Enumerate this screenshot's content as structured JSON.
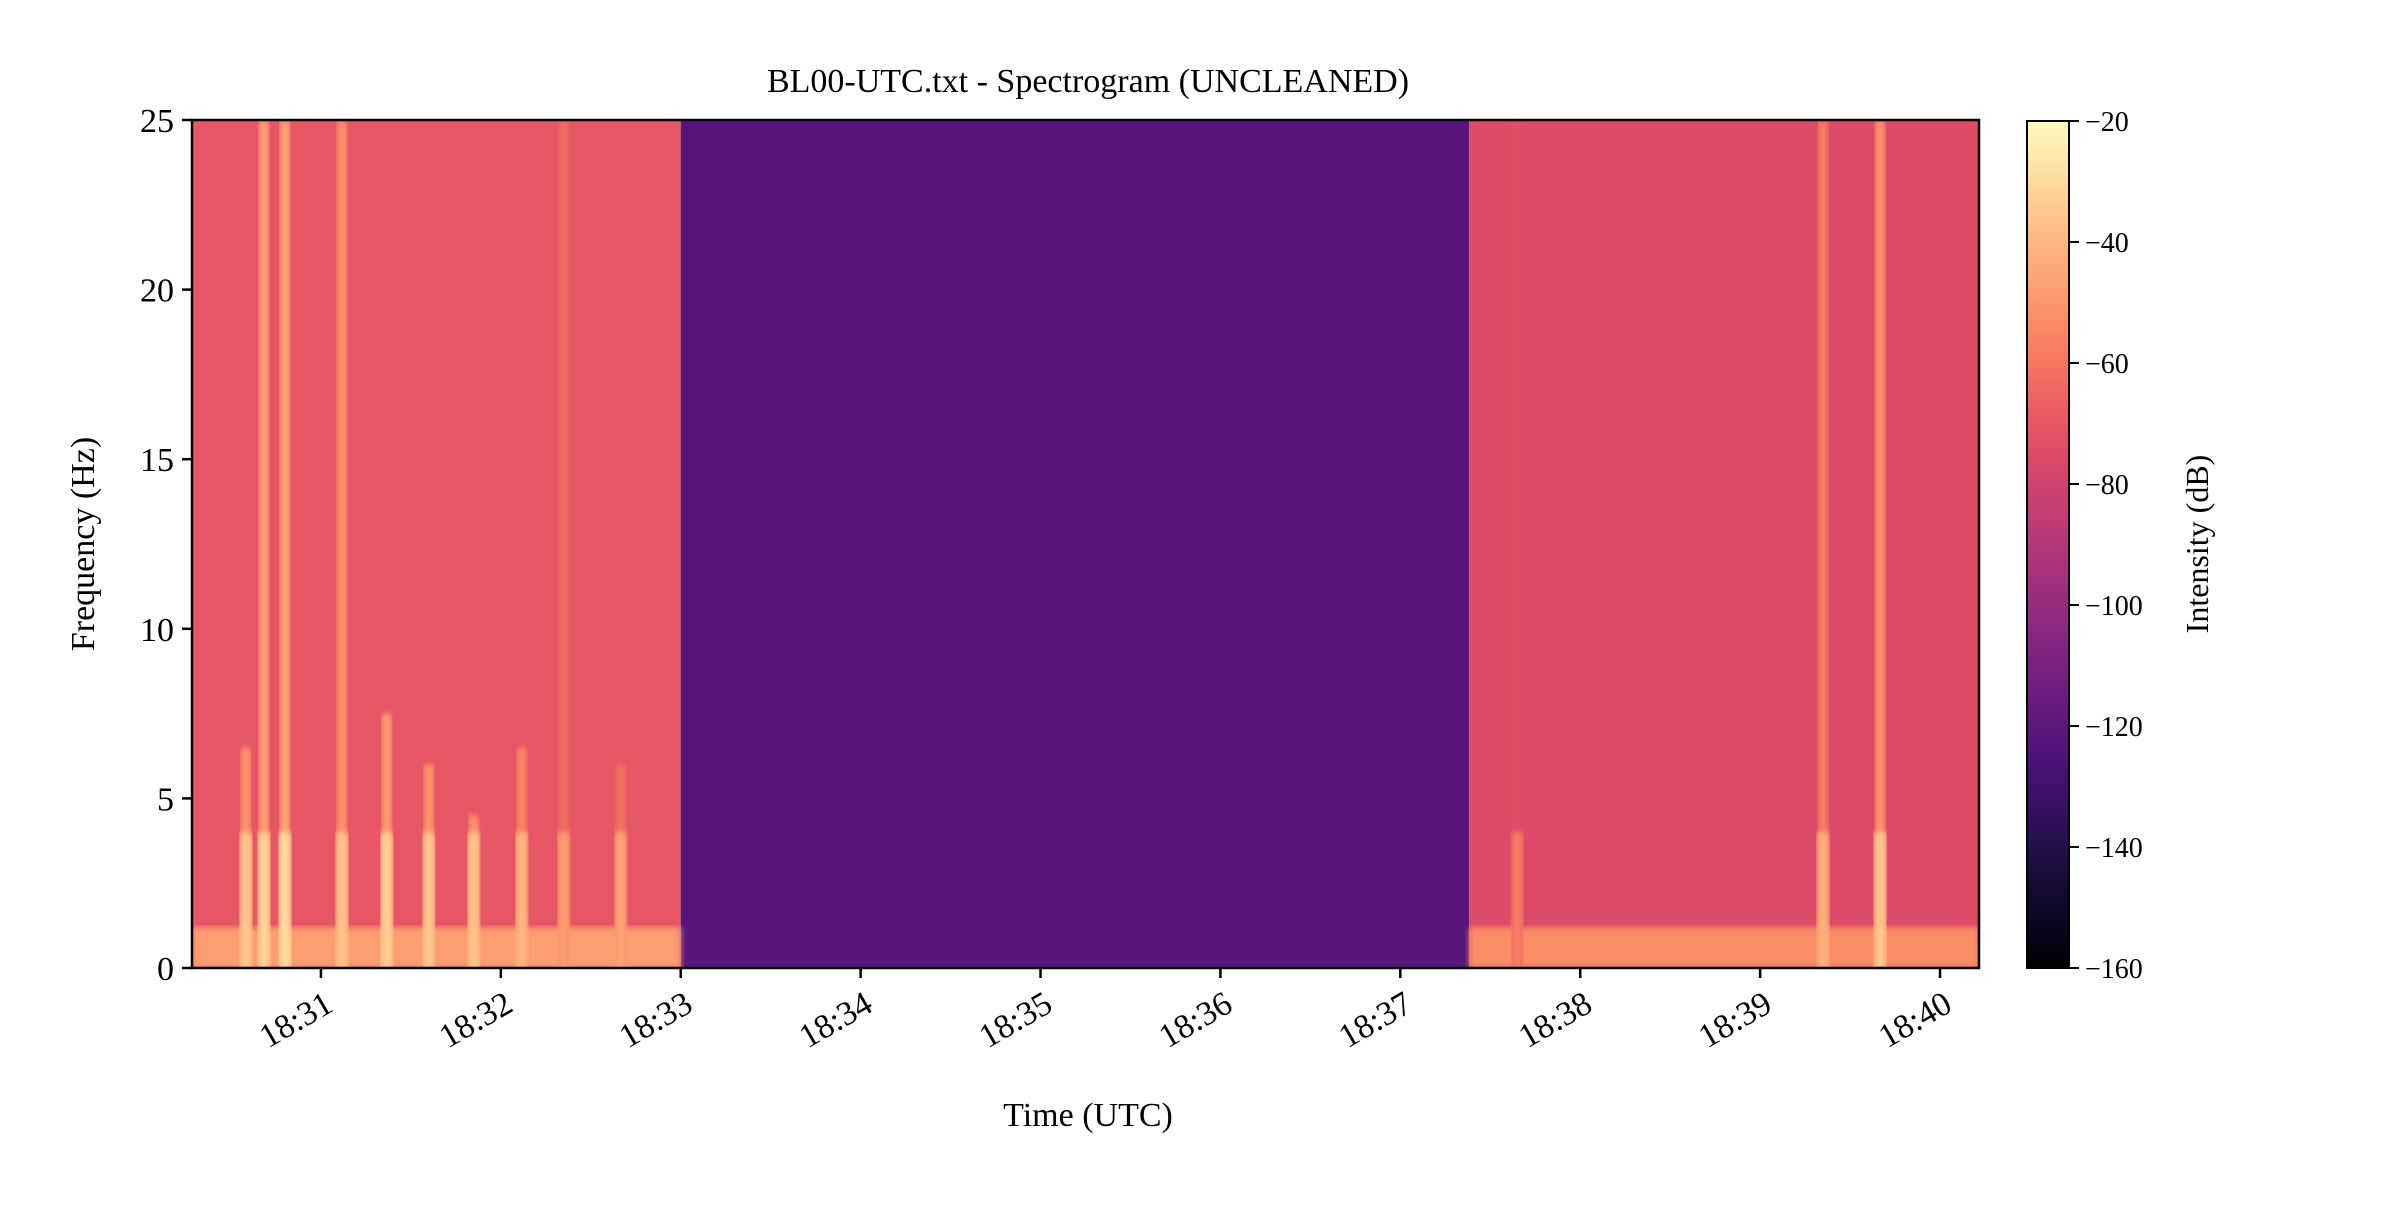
{
  "chart_data": {
    "type": "heatmap",
    "title": "BL00-UTC.txt - Spectrogram (UNCLEANED)",
    "xlabel": "Time (UTC)",
    "ylabel": "Frequency (Hz)",
    "x_scale": "time",
    "x_range": [
      "18:30:17",
      "18:40:13"
    ],
    "x_ticks": [
      "18:31",
      "18:32",
      "18:33",
      "18:34",
      "18:35",
      "18:36",
      "18:37",
      "18:38",
      "18:39",
      "18:40"
    ],
    "y_range": [
      0,
      25
    ],
    "y_ticks": [
      0,
      5,
      10,
      15,
      20,
      25
    ],
    "colorbar": {
      "label": "Intensity (dB)",
      "range": [
        -160,
        -20
      ],
      "ticks": [
        -160,
        -140,
        -120,
        -100,
        -80,
        -60,
        -40,
        -20
      ],
      "colormap": "magma"
    },
    "grid": false,
    "segments": [
      {
        "start": "18:30:17",
        "end": "18:33:00",
        "description_db": -70,
        "note": "active"
      },
      {
        "start": "18:33:00",
        "end": "18:37:23",
        "description_db": -122,
        "note": "quiet"
      },
      {
        "start": "18:37:23",
        "end": "18:40:13",
        "description_db": -75,
        "note": "active"
      }
    ],
    "bursts": [
      {
        "time": "18:30:35",
        "top_hz": 6.5,
        "db": -35
      },
      {
        "time": "18:30:41",
        "top_hz": 25,
        "db": -32
      },
      {
        "time": "18:30:48",
        "top_hz": 25,
        "db": -30
      },
      {
        "time": "18:31:07",
        "top_hz": 25,
        "db": -36
      },
      {
        "time": "18:31:22",
        "top_hz": 7.5,
        "db": -33
      },
      {
        "time": "18:31:36",
        "top_hz": 6,
        "db": -35
      },
      {
        "time": "18:31:51",
        "top_hz": 4.5,
        "db": -36
      },
      {
        "time": "18:32:07",
        "top_hz": 6.5,
        "db": -40
      },
      {
        "time": "18:32:21",
        "top_hz": 25,
        "db": -48
      },
      {
        "time": "18:32:40",
        "top_hz": 6,
        "db": -46
      },
      {
        "time": "18:37:39",
        "top_hz": 25,
        "db": -58
      },
      {
        "time": "18:39:21",
        "top_hz": 25,
        "db": -42
      },
      {
        "time": "18:39:40",
        "top_hz": 25,
        "db": -35
      }
    ]
  }
}
